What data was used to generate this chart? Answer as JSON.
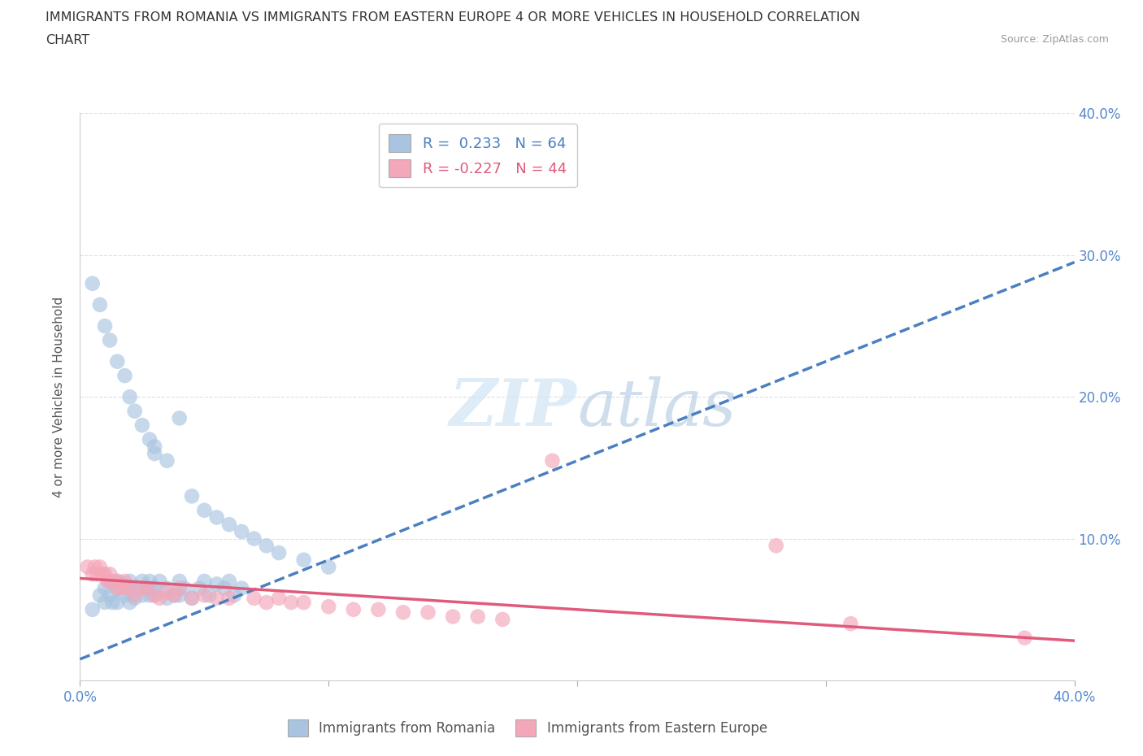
{
  "title_line1": "IMMIGRANTS FROM ROMANIA VS IMMIGRANTS FROM EASTERN EUROPE 4 OR MORE VEHICLES IN HOUSEHOLD CORRELATION",
  "title_line2": "CHART",
  "source": "Source: ZipAtlas.com",
  "ylabel": "4 or more Vehicles in Household",
  "xlim": [
    0.0,
    0.4
  ],
  "ylim": [
    0.0,
    0.4
  ],
  "blue_color": "#a8c4e0",
  "pink_color": "#f4a7b9",
  "blue_line_color": "#4a7fc1",
  "pink_line_color": "#e05a7a",
  "legend_blue_color": "#a8c4e0",
  "legend_pink_color": "#f4a7b9",
  "R_blue": 0.233,
  "N_blue": 64,
  "R_pink": -0.227,
  "N_pink": 44,
  "watermark": "ZIPatlas",
  "watermark_color": "#c8dff0",
  "blue_trendline_x": [
    0.0,
    0.4
  ],
  "blue_trendline_y": [
    0.015,
    0.295
  ],
  "pink_trendline_x": [
    0.0,
    0.4
  ],
  "pink_trendline_y": [
    0.072,
    0.028
  ],
  "background_color": "#ffffff",
  "grid_color": "#dddddd",
  "title_color": "#333333",
  "axis_label_color": "#555555",
  "tick_label_color": "#5588cc",
  "blue_scatter_x": [
    0.005,
    0.008,
    0.01,
    0.01,
    0.012,
    0.012,
    0.013,
    0.015,
    0.015,
    0.015,
    0.017,
    0.018,
    0.02,
    0.02,
    0.02,
    0.022,
    0.023,
    0.025,
    0.025,
    0.027,
    0.028,
    0.028,
    0.03,
    0.03,
    0.032,
    0.035,
    0.035,
    0.038,
    0.04,
    0.04,
    0.042,
    0.045,
    0.048,
    0.05,
    0.052,
    0.055,
    0.058,
    0.06,
    0.062,
    0.065,
    0.005,
    0.008,
    0.01,
    0.012,
    0.015,
    0.018,
    0.02,
    0.022,
    0.025,
    0.028,
    0.03,
    0.035,
    0.04,
    0.045,
    0.05,
    0.055,
    0.06,
    0.065,
    0.07,
    0.075,
    0.08,
    0.09,
    0.1,
    0.03
  ],
  "blue_scatter_y": [
    0.05,
    0.06,
    0.055,
    0.065,
    0.06,
    0.07,
    0.055,
    0.065,
    0.055,
    0.07,
    0.068,
    0.06,
    0.062,
    0.07,
    0.055,
    0.058,
    0.065,
    0.06,
    0.07,
    0.065,
    0.06,
    0.07,
    0.065,
    0.06,
    0.07,
    0.058,
    0.065,
    0.06,
    0.07,
    0.06,
    0.065,
    0.058,
    0.065,
    0.07,
    0.06,
    0.068,
    0.065,
    0.07,
    0.06,
    0.065,
    0.28,
    0.265,
    0.25,
    0.24,
    0.225,
    0.215,
    0.2,
    0.19,
    0.18,
    0.17,
    0.165,
    0.155,
    0.185,
    0.13,
    0.12,
    0.115,
    0.11,
    0.105,
    0.1,
    0.095,
    0.09,
    0.085,
    0.08,
    0.16
  ],
  "pink_scatter_x": [
    0.003,
    0.005,
    0.006,
    0.007,
    0.008,
    0.009,
    0.01,
    0.011,
    0.012,
    0.013,
    0.015,
    0.015,
    0.017,
    0.018,
    0.02,
    0.022,
    0.025,
    0.027,
    0.03,
    0.032,
    0.035,
    0.038,
    0.04,
    0.045,
    0.05,
    0.055,
    0.06,
    0.07,
    0.075,
    0.08,
    0.085,
    0.09,
    0.1,
    0.11,
    0.12,
    0.13,
    0.14,
    0.15,
    0.16,
    0.17,
    0.19,
    0.28,
    0.31,
    0.38
  ],
  "pink_scatter_y": [
    0.08,
    0.075,
    0.08,
    0.075,
    0.08,
    0.075,
    0.075,
    0.07,
    0.075,
    0.07,
    0.07,
    0.065,
    0.065,
    0.07,
    0.065,
    0.06,
    0.065,
    0.065,
    0.06,
    0.058,
    0.062,
    0.06,
    0.065,
    0.058,
    0.06,
    0.058,
    0.058,
    0.058,
    0.055,
    0.058,
    0.055,
    0.055,
    0.052,
    0.05,
    0.05,
    0.048,
    0.048,
    0.045,
    0.045,
    0.043,
    0.155,
    0.095,
    0.04,
    0.03
  ]
}
